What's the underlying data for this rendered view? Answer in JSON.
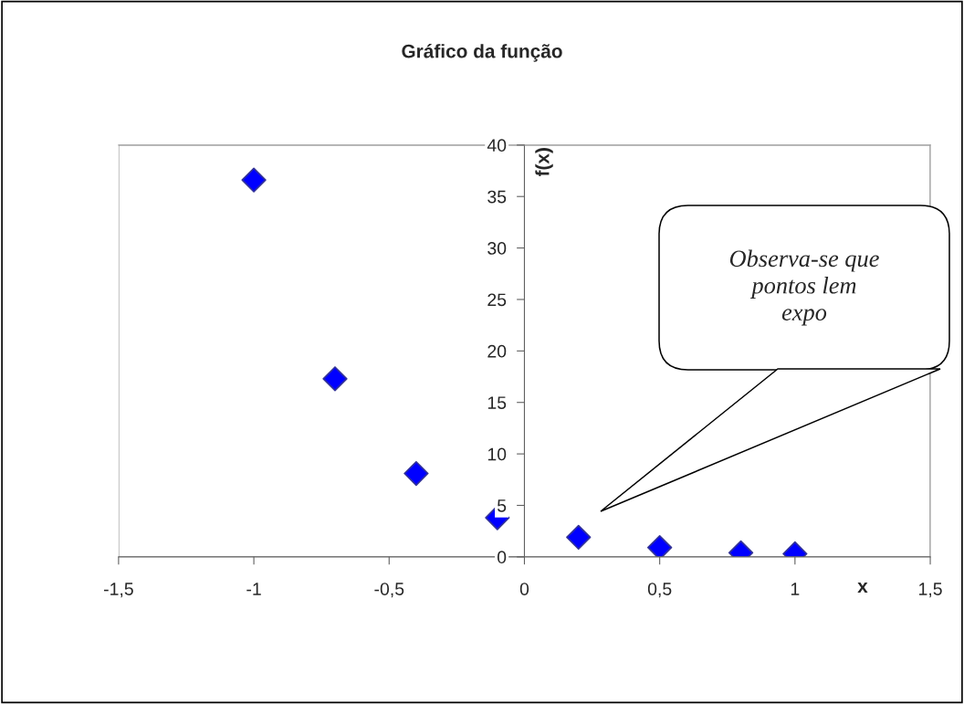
{
  "chart_data": {
    "type": "scatter",
    "title": "Gráfico da função",
    "xlabel": "x",
    "ylabel": "f(x)",
    "x": [
      -1,
      -0.7,
      -0.4,
      -0.1,
      0.2,
      0.5,
      0.8,
      1
    ],
    "series": [
      {
        "color": "#0000ff",
        "values": [
          36.6,
          17.3,
          8.1,
          3.8,
          1.9,
          0.9,
          0.4,
          0.3
        ]
      }
    ],
    "xlim": [
      -1.5,
      1.5
    ],
    "xticks": [
      {
        "value": -1.5,
        "label": "-1,5"
      },
      -1,
      {
        "value": -0.5,
        "label": "-0,5"
      },
      0,
      {
        "value": 0.5,
        "label": "0,5"
      },
      1,
      {
        "value": 1.5,
        "label": "1,5"
      }
    ],
    "ylim": [
      0,
      40
    ],
    "yticks": [
      0,
      5,
      10,
      15,
      20,
      25,
      30,
      35,
      40
    ],
    "marker": "diamond",
    "grid": false,
    "legend": false,
    "annotations": [
      "Observa-se que\npontos lem\nexpo"
    ]
  }
}
